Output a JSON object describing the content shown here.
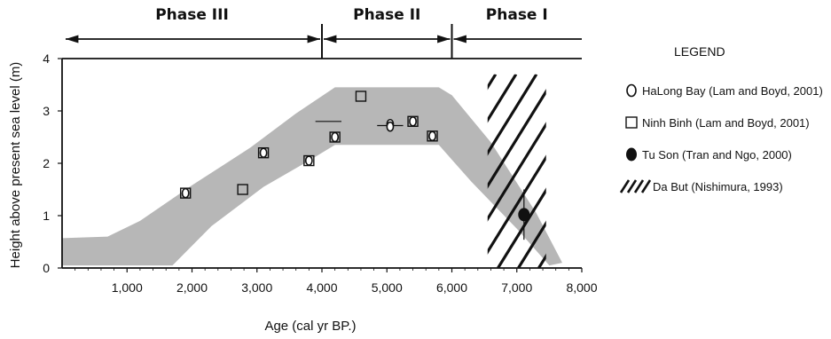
{
  "chart_data": {
    "type": "scatter",
    "xlabel": "Age (cal yr BP.)",
    "ylabel": "Height above present sea level (m)",
    "xlim": [
      0,
      8000
    ],
    "ylim": [
      0,
      4
    ],
    "x_ticks": [
      {
        "value": 1000,
        "label": "1,000"
      },
      {
        "value": 2000,
        "label": "2,000"
      },
      {
        "value": 3000,
        "label": "3,000"
      },
      {
        "value": 4000,
        "label": "4,000"
      },
      {
        "value": 5000,
        "label": "5,000"
      },
      {
        "value": 6000,
        "label": "6,000"
      },
      {
        "value": 7000,
        "label": "7,000"
      },
      {
        "value": 8000,
        "label": "8,000"
      }
    ],
    "y_ticks": [
      {
        "value": 0,
        "label": "0"
      },
      {
        "value": 1,
        "label": "1"
      },
      {
        "value": 2,
        "label": "2"
      },
      {
        "value": 3,
        "label": "3"
      },
      {
        "value": 4,
        "label": "4"
      }
    ],
    "phases": [
      {
        "label": "Phase III",
        "from": 0,
        "to": 4000
      },
      {
        "label": "Phase II",
        "from": 4000,
        "to": 6000
      },
      {
        "label": "Phase I",
        "from": 6000,
        "to": 8000
      }
    ],
    "band": {
      "color": "#b7b7b7",
      "upper": [
        [
          0,
          0.57
        ],
        [
          700,
          0.6
        ],
        [
          1200,
          0.9
        ],
        [
          2000,
          1.58
        ],
        [
          2900,
          2.3
        ],
        [
          3600,
          2.95
        ],
        [
          4200,
          3.45
        ],
        [
          5800,
          3.45
        ],
        [
          6000,
          3.3
        ],
        [
          6600,
          2.4
        ],
        [
          7300,
          1.05
        ],
        [
          7700,
          0.1
        ]
      ],
      "lower": [
        [
          0,
          0.05
        ],
        [
          1700,
          0.05
        ],
        [
          2300,
          0.8
        ],
        [
          3100,
          1.55
        ],
        [
          3800,
          2.05
        ],
        [
          4200,
          2.35
        ],
        [
          5800,
          2.35
        ],
        [
          6300,
          1.65
        ],
        [
          7000,
          0.75
        ],
        [
          7500,
          0.05
        ]
      ]
    },
    "hatch": {
      "x_from": 6550,
      "x_to": 7450,
      "y_from": 0,
      "y_to": 3.7
    },
    "series": [
      {
        "name": "HaLong Bay (Lam and Boyd, 2001)",
        "marker": "circle",
        "points": [
          [
            1900,
            1.43
          ],
          [
            3100,
            2.2
          ],
          [
            3800,
            2.05
          ],
          [
            4200,
            2.5
          ],
          [
            5050,
            2.75
          ],
          [
            5050,
            2.7
          ],
          [
            5400,
            2.8
          ],
          [
            5700,
            2.52
          ]
        ]
      },
      {
        "name": "Ninh Binh (Lam and Boyd, 2001)",
        "marker": "square",
        "points": [
          [
            1900,
            1.43
          ],
          [
            2780,
            1.5
          ],
          [
            3100,
            2.2
          ],
          [
            3800,
            2.05
          ],
          [
            4200,
            2.5
          ],
          [
            4600,
            3.28
          ],
          [
            5400,
            2.8
          ],
          [
            5700,
            2.52
          ]
        ]
      },
      {
        "name": "Tu Son (Tran and Ngo, 2000)",
        "marker": "filled-circle",
        "points": [
          [
            7110,
            1.02
          ]
        ]
      }
    ],
    "error_bars": [
      {
        "x": 4100,
        "y": 2.8,
        "x_err": 200
      },
      {
        "x": 5050,
        "y": 2.72,
        "x_err": 200
      },
      {
        "x": 7110,
        "y": 1.02,
        "y_err": 0.48
      }
    ],
    "legend": {
      "title": "LEGEND",
      "position": "right",
      "items": [
        {
          "label": "HaLong Bay (Lam and Boyd, 2001)",
          "symbol": "circle"
        },
        {
          "label": "Ninh Binh (Lam and Boyd, 2001)",
          "symbol": "square"
        },
        {
          "label": "Tu Son (Tran and Ngo, 2000)",
          "symbol": "filled-circle"
        },
        {
          "label": "Da But (Nishimura, 1993)",
          "symbol": "hatch"
        }
      ]
    }
  }
}
